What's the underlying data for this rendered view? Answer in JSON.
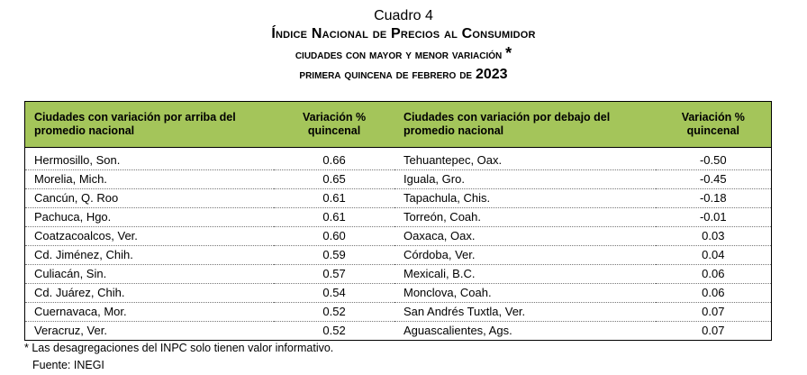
{
  "header": {
    "cuadro": "Cuadro 4",
    "title": "Índice Nacional de Precios al Consumidor",
    "subtitle": "ciudades con mayor y menor variación",
    "subtitle_mark": "*",
    "period": "primera quincena de febrero de",
    "year": "2023"
  },
  "table": {
    "columns": [
      "Ciudades con variación por arriba del promedio nacional",
      "Variación % quincenal",
      "Ciudades con variación por debajo del promedio nacional",
      "Variación % quincenal"
    ],
    "rows": [
      [
        "Hermosillo, Son.",
        "0.66",
        "Tehuantepec, Oax.",
        "-0.50"
      ],
      [
        "Morelia, Mich.",
        "0.65",
        "Iguala, Gro.",
        "-0.45"
      ],
      [
        "Cancún, Q. Roo",
        "0.61",
        "Tapachula, Chis.",
        "-0.18"
      ],
      [
        "Pachuca, Hgo.",
        "0.61",
        "Torreón, Coah.",
        "-0.01"
      ],
      [
        "Coatzacoalcos, Ver.",
        "0.60",
        "Oaxaca, Oax.",
        "0.03"
      ],
      [
        "Cd. Jiménez, Chih.",
        "0.59",
        "Córdoba, Ver.",
        "0.04"
      ],
      [
        "Culiacán, Sin.",
        "0.57",
        "Mexicali, B.C.",
        "0.06"
      ],
      [
        "Cd. Juárez, Chih.",
        "0.54",
        "Monclova, Coah.",
        "0.06"
      ],
      [
        "Cuernavaca, Mor.",
        "0.52",
        "San Andrés Tuxtla, Ver.",
        "0.07"
      ],
      [
        "Veracruz, Ver.",
        "0.52",
        "Aguascalientes, Ags.",
        "0.07"
      ]
    ]
  },
  "footnote": {
    "mark": "*",
    "text": "Las desagregaciones del INPC solo tienen valor informativo."
  },
  "source": "Fuente: INEGI",
  "colors": {
    "header_bg": "#a4c55a"
  }
}
